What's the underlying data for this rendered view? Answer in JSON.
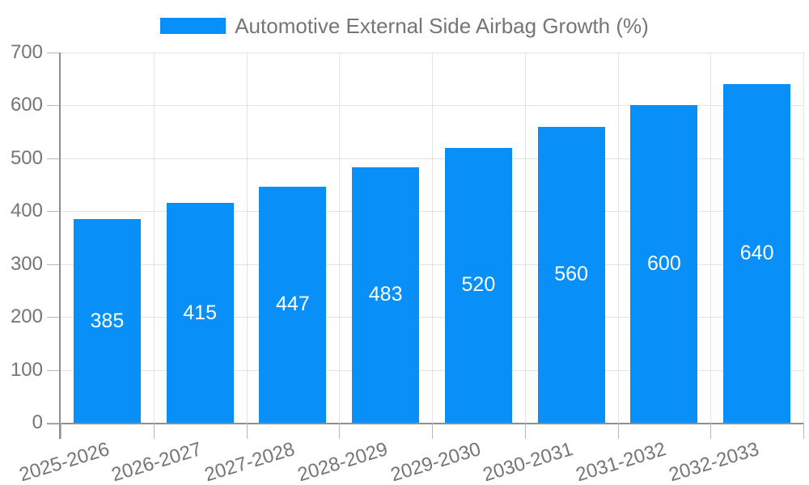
{
  "chart_data": {
    "type": "bar",
    "title": "",
    "series_name": "Automotive External Side Airbag Growth (%)",
    "categories": [
      "2025-2026",
      "2026-2027",
      "2027-2028",
      "2028-2029",
      "2029-2030",
      "2030-2031",
      "2031-2032",
      "2032-2033"
    ],
    "values": [
      385,
      415,
      447,
      483,
      520,
      560,
      600,
      640
    ],
    "xlabel": "",
    "ylabel": "",
    "ylim": [
      0,
      700
    ],
    "yticks": [
      0,
      100,
      200,
      300,
      400,
      500,
      600,
      700
    ],
    "grid": true,
    "legend_position": "top",
    "bar_color": "#0890f8",
    "value_label_color": "#ffffff",
    "axis_label_color": "#757575",
    "legend_label_color": "#757575"
  }
}
